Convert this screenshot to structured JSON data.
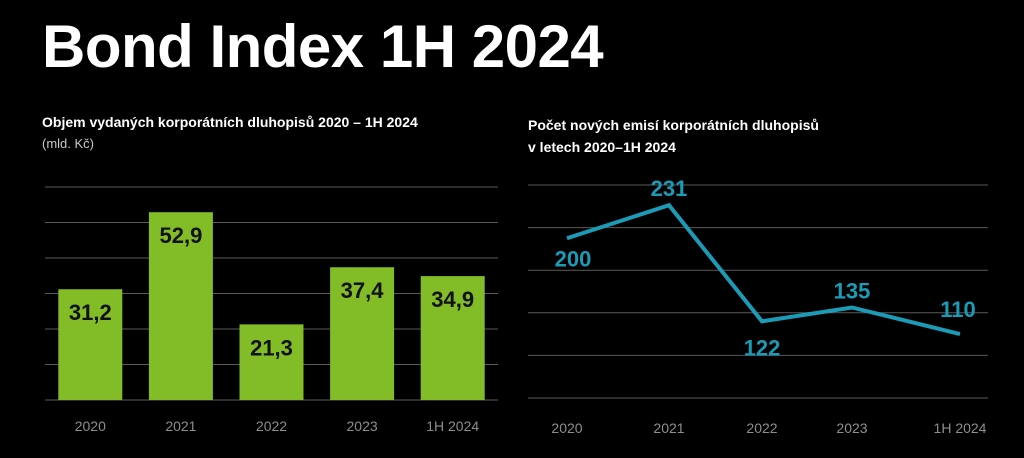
{
  "title": "Bond Index 1H 2024",
  "chart_data": [
    {
      "type": "bar",
      "title": "Objem vydaných korporátních dluhopisů 2020 – 1H 2024",
      "subtitle": "(mld. Kč)",
      "categories": [
        "2020",
        "2021",
        "2022",
        "2023",
        "1H 2024"
      ],
      "values": [
        31.2,
        52.9,
        21.3,
        37.4,
        34.9
      ],
      "value_labels": [
        "31,2",
        "52,9",
        "21,3",
        "37,4",
        "34,9"
      ],
      "ylim": [
        0,
        60
      ],
      "grid": true,
      "color": "#82bc26"
    },
    {
      "type": "line",
      "title_lines": [
        "Počet nových emisí korporátních dluhopisů",
        "v letech 2020–1H 2024"
      ],
      "categories": [
        "2020",
        "2021",
        "2022",
        "2023",
        "1H 2024"
      ],
      "values": [
        200,
        231,
        122,
        135,
        110
      ],
      "value_labels": [
        "200",
        "231",
        "122",
        "135",
        "110"
      ],
      "ylim": [
        50,
        250
      ],
      "grid": true,
      "color": "#1b9bb6"
    }
  ]
}
